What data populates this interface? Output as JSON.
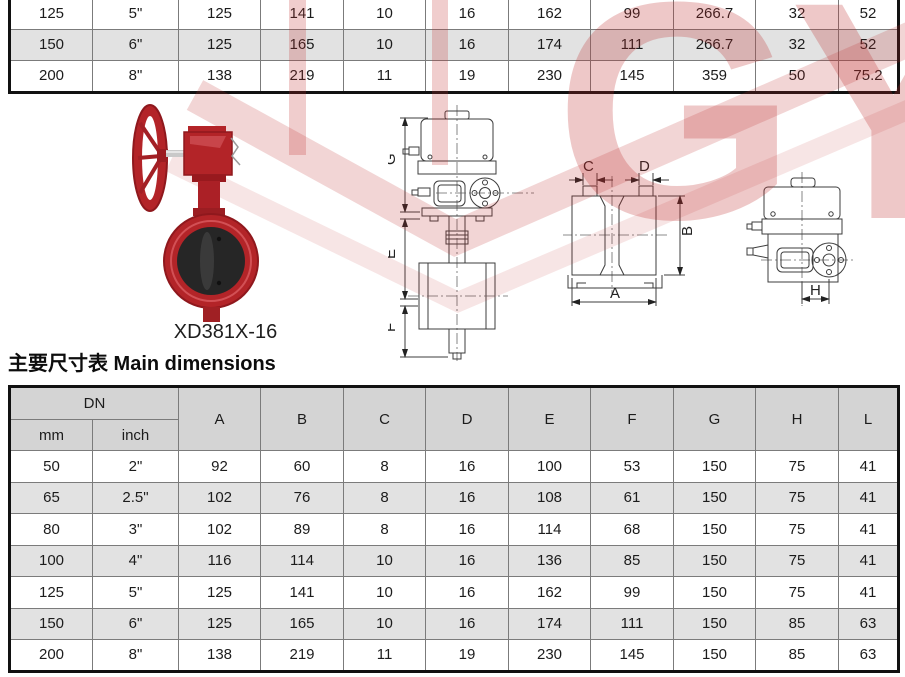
{
  "page": {
    "heading": "主要尺寸表 Main dimensions",
    "model_label": "XD381X-16",
    "watermark_text": "GY"
  },
  "top_table": {
    "rows": [
      [
        "125",
        "5\"",
        "125",
        "141",
        "10",
        "16",
        "162",
        "99",
        "266.7",
        "32",
        "52"
      ],
      [
        "150",
        "6\"",
        "125",
        "165",
        "10",
        "16",
        "174",
        "111",
        "266.7",
        "32",
        "52"
      ],
      [
        "200",
        "8\"",
        "138",
        "219",
        "11",
        "19",
        "230",
        "145",
        "359",
        "50",
        "75.2"
      ]
    ]
  },
  "main_table": {
    "header": {
      "dn": "DN",
      "mm": "mm",
      "inch": "inch",
      "dims": [
        "A",
        "B",
        "C",
        "D",
        "E",
        "F",
        "G",
        "H",
        "L"
      ]
    },
    "rows": [
      [
        "50",
        "2\"",
        "92",
        "60",
        "8",
        "16",
        "100",
        "53",
        "150",
        "75",
        "41"
      ],
      [
        "65",
        "2.5\"",
        "102",
        "76",
        "8",
        "16",
        "108",
        "61",
        "150",
        "75",
        "41"
      ],
      [
        "80",
        "3\"",
        "102",
        "89",
        "8",
        "16",
        "114",
        "68",
        "150",
        "75",
        "41"
      ],
      [
        "100",
        "4\"",
        "116",
        "114",
        "10",
        "16",
        "136",
        "85",
        "150",
        "75",
        "41"
      ],
      [
        "125",
        "5\"",
        "125",
        "141",
        "10",
        "16",
        "162",
        "99",
        "150",
        "75",
        "41"
      ],
      [
        "150",
        "6\"",
        "125",
        "165",
        "10",
        "16",
        "174",
        "111",
        "150",
        "85",
        "63"
      ],
      [
        "200",
        "8\"",
        "138",
        "219",
        "11",
        "19",
        "230",
        "145",
        "150",
        "85",
        "63"
      ]
    ]
  },
  "drawings": {
    "front_view": {
      "dim_labels": [
        "G",
        "E",
        "F"
      ]
    },
    "side_view": {
      "dim_labels": [
        "C",
        "D",
        "B",
        "A"
      ]
    },
    "top_view": {
      "dim_labels": [
        "H"
      ]
    }
  },
  "colors": {
    "valve_red": "#b32428",
    "valve_red_dark": "#8f181d",
    "disc_black": "#262626",
    "header_gray": "#d4d4d4",
    "row_gray": "#e2e2e2",
    "grid_gray": "#7b7b7b",
    "watermark_red": "rgba(191,44,44,0.26)"
  }
}
